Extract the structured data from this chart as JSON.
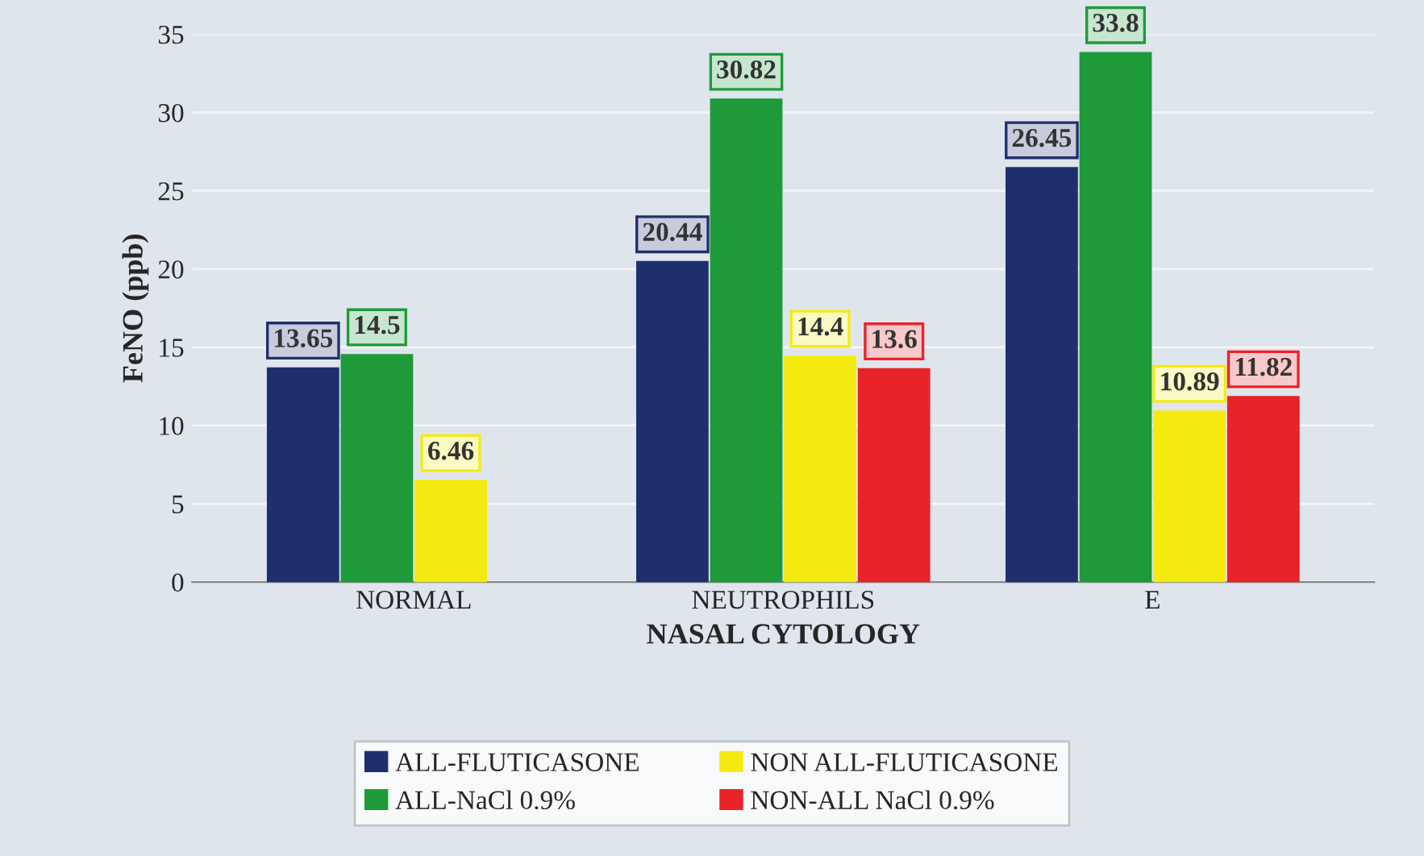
{
  "chart_data": {
    "type": "bar",
    "xlabel": "NASAL CYTOLOGY",
    "ylabel": "FeNO (ppb)",
    "categories": [
      "NORMAL",
      "NEUTROPHILS",
      "E"
    ],
    "series": [
      {
        "name": "ALL-FLUTICASONE",
        "color": "#1f2f6e",
        "values": [
          13.65,
          20.44,
          26.45
        ]
      },
      {
        "name": "ALL-NaCl 0.9%",
        "color": "#1e9a3a",
        "values": [
          14.5,
          30.82,
          33.8
        ]
      },
      {
        "name": "NON ALL-FLUTICASONE",
        "color": "#f5ea10",
        "values": [
          6.46,
          14.4,
          10.89
        ]
      },
      {
        "name": "NON-ALL NaCl 0.9%",
        "color": "#e8232a",
        "values": [
          null,
          13.6,
          11.82
        ]
      }
    ],
    "ylim": [
      0,
      35
    ],
    "yticks": [
      0,
      5,
      10,
      15,
      20,
      25,
      30,
      35
    ],
    "grid": "y",
    "legend": "bottom",
    "data_labels": true
  }
}
